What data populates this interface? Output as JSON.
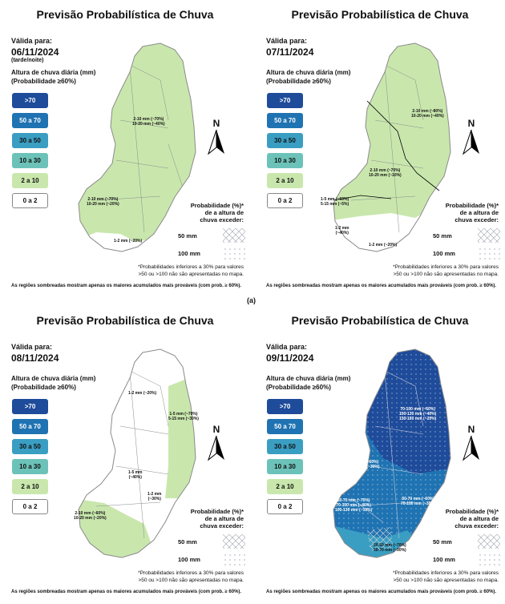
{
  "figure_label": "(a)",
  "colors": {
    "c70": "#1e4b9a",
    "c50_70": "#1f73b2",
    "c30_50": "#3a9ec2",
    "c10_30": "#6cc2b8",
    "c2_10": "#c9e7ad",
    "c0_2": "#ffffff",
    "map_border": "#8a8a8a"
  },
  "legend": {
    "title_line1": "Altura de chuva diária (mm)",
    "title_line2": "(Probabilidade ≥60%)",
    "items": [
      ">70",
      "50 a 70",
      "30 a 50",
      "10 a 30",
      "2 a 10",
      "0 a 2"
    ]
  },
  "common": {
    "valid_label": "Válida para:",
    "north_label": "N",
    "prob_title": [
      "Probabilidade (%)*",
      "de a altura de",
      "chuva exceder:"
    ],
    "pattern_50": "50 mm",
    "pattern_100": "100 mm",
    "footnote_1": "*Probabilidades inferiores a 30% para valores",
    "footnote_2": ">50 ou >100 não são apresentadas no mapa.",
    "footnote_3": "As regiões sombreadas mostram apenas os maiores acumulados mais prováveis (com prob. ≥ 60%)."
  },
  "panels": [
    {
      "title": "Previsão Probabilística de Chuva",
      "date": "06/11/2024",
      "date_note": "(tarde/noite)",
      "annotations": [
        {
          "line1": "2-10 mm (~70%)",
          "line2": "10-20 mm (~40%)"
        },
        {
          "line1": "2-10 mm (~70%)",
          "line2": "10-20 mm (~20%)"
        },
        {
          "line1": "1-2 mm (~20%)",
          "line2": ""
        }
      ]
    },
    {
      "title": "Previsão Probabilística de Chuva",
      "date": "07/11/2024",
      "date_note": "",
      "annotations": [
        {
          "line1": "2-10 mm (~80%)",
          "line2": "10-20 mm (~40%)"
        },
        {
          "line1": "2-10 mm (~70%)",
          "line2": "10-20 mm (~10%)"
        },
        {
          "line1": "1-5 mm (~60%)",
          "line2": "5-15 mm (~5%)"
        },
        {
          "line1": "1-2 mm",
          "line2": "(~40%)"
        },
        {
          "line1": "1-2 mm (~20%)",
          "line2": ""
        }
      ]
    },
    {
      "title": "Previsão Probabilística de Chuva",
      "date": "08/11/2024",
      "date_note": "",
      "annotations": [
        {
          "line1": "1-2 mm (~20%)",
          "line2": ""
        },
        {
          "line1": "1-5 mm (~70%)",
          "line2": "5-15 mm (~30%)"
        },
        {
          "line1": "1-5 mm",
          "line2": "(~40%)"
        },
        {
          "line1": "1-2 mm",
          "line2": "(~30%)"
        },
        {
          "line1": "2-10 mm (~60%)",
          "line2": "10-20 mm (~20%)"
        }
      ]
    },
    {
      "title": "Previsão Probabilística de Chuva",
      "date": "09/11/2024",
      "date_note": "",
      "annotations": [
        {
          "line1": "70-100 mm (~60%)",
          "line2": "100-130 mm (~40%)",
          "line3": "130-160 mm (~20%)"
        },
        {
          "line1": "50-70 mm (~60%)",
          "line2": "70-100 mm (~30%)",
          "line3": ""
        },
        {
          "line1": "50-70 mm (~70%)",
          "line2": "70-100 mm (~40%)",
          "line3": "100-130 mm (~10%)"
        },
        {
          "line1": "50-70 mm (~60%)",
          "line2": "70-100 mm (~30%)",
          "line3": ""
        },
        {
          "line1": "30-50 mm (~70%)",
          "line2": "50-70 mm (~30%)",
          "line3": ""
        }
      ]
    }
  ]
}
